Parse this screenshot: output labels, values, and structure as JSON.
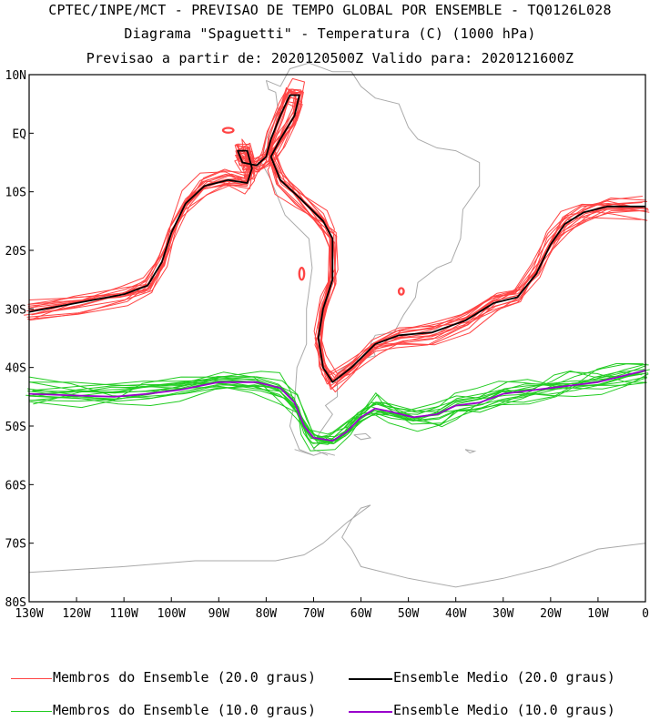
{
  "titles": {
    "line1": "CPTEC/INPE/MCT - PREVISAO DE TEMPO GLOBAL POR ENSEMBLE - TQ0126L028",
    "line2": "Diagrama \"Spaguetti\" - Temperatura (C) (1000 hPa)",
    "line3": "Previsao a partir de: 2020120500Z  Valido para: 2020121600Z"
  },
  "colors": {
    "member20": "#ff4444",
    "mean20": "#000000",
    "member10": "#22cc22",
    "mean10": "#9900cc",
    "coast": "#aaaaaa"
  },
  "legend": [
    {
      "label": "Membros do Ensemble (20.0 graus)",
      "color": "#ff4444",
      "key": "member20"
    },
    {
      "label": "Ensemble Medio (20.0 graus)",
      "color": "#000000",
      "key": "mean20"
    },
    {
      "label": "Membros do Ensemble (10.0 graus)",
      "color": "#22cc22",
      "key": "member10"
    },
    {
      "label": "Ensemble Medio (10.0 graus)",
      "color": "#9900cc",
      "key": "mean10"
    }
  ],
  "chart_data": {
    "type": "line",
    "xlim": [
      -130,
      0
    ],
    "ylim": [
      -80,
      10
    ],
    "x_ticks": [
      -130,
      -120,
      -110,
      -100,
      -90,
      -80,
      -70,
      -60,
      -50,
      -40,
      -30,
      -20,
      -10,
      0
    ],
    "x_tick_labels": [
      "130W",
      "120W",
      "110W",
      "100W",
      "90W",
      "80W",
      "70W",
      "60W",
      "50W",
      "40W",
      "30W",
      "20W",
      "10W",
      "0"
    ],
    "y_ticks": [
      10,
      0,
      -10,
      -20,
      -30,
      -40,
      -50,
      -60,
      -70,
      -80
    ],
    "y_tick_labels": [
      "10N",
      "EQ",
      "10S",
      "20S",
      "30S",
      "40S",
      "50S",
      "60S",
      "70S",
      "80S"
    ],
    "series": [
      {
        "name": "Ensemble Medio (20.0 graus)",
        "color": "#000000",
        "points": [
          [
            -130,
            -30.5
          ],
          [
            -120,
            -29
          ],
          [
            -110,
            -27.5
          ],
          [
            -105,
            -26
          ],
          [
            -102,
            -22
          ],
          [
            -100,
            -17
          ],
          [
            -97,
            -12
          ],
          [
            -93,
            -9
          ],
          [
            -88,
            -8
          ],
          [
            -84,
            -8.5
          ],
          [
            -83,
            -6
          ],
          [
            -84,
            -3
          ],
          [
            -86,
            -3
          ],
          [
            -85,
            -5
          ],
          [
            -82,
            -5.5
          ],
          [
            -80,
            -4
          ],
          [
            -79,
            -1
          ],
          [
            -77,
            3
          ],
          [
            -75,
            6.5
          ],
          [
            -73,
            6.5
          ],
          [
            -74,
            3
          ],
          [
            -77,
            -1
          ],
          [
            -79,
            -4
          ],
          [
            -77,
            -8
          ],
          [
            -73,
            -11
          ],
          [
            -68,
            -15
          ],
          [
            -66,
            -18
          ],
          [
            -66,
            -25
          ],
          [
            -68,
            -30
          ],
          [
            -69,
            -35
          ],
          [
            -68,
            -40
          ],
          [
            -66,
            -42.5
          ],
          [
            -62,
            -40
          ],
          [
            -57,
            -36
          ],
          [
            -52,
            -34.5
          ],
          [
            -45,
            -34
          ],
          [
            -38,
            -32
          ],
          [
            -32,
            -29
          ],
          [
            -27,
            -28
          ],
          [
            -23,
            -24
          ],
          [
            -20,
            -19
          ],
          [
            -17,
            -15.5
          ],
          [
            -13,
            -13.5
          ],
          [
            -8,
            -12.5
          ],
          [
            0,
            -12.5
          ]
        ]
      },
      {
        "name": "Ensemble Medio (10.0 graus)",
        "color": "#9900cc",
        "points": [
          [
            -130,
            -44.5
          ],
          [
            -120,
            -44.8
          ],
          [
            -112,
            -45
          ],
          [
            -105,
            -44.5
          ],
          [
            -98,
            -43.8
          ],
          [
            -90,
            -42.5
          ],
          [
            -82,
            -42.5
          ],
          [
            -77,
            -43.5
          ],
          [
            -74,
            -46
          ],
          [
            -72,
            -50
          ],
          [
            -70,
            -52
          ],
          [
            -66,
            -52.5
          ],
          [
            -63,
            -51
          ],
          [
            -60,
            -48.5
          ],
          [
            -57,
            -47
          ],
          [
            -54,
            -47.5
          ],
          [
            -49,
            -48.5
          ],
          [
            -44,
            -48
          ],
          [
            -40,
            -46.5
          ],
          [
            -35,
            -46
          ],
          [
            -30,
            -44.5
          ],
          [
            -25,
            -44
          ],
          [
            -20,
            -43.5
          ],
          [
            -15,
            -43
          ],
          [
            -10,
            -42.5
          ],
          [
            -5,
            -41.5
          ],
          [
            0,
            -40.5
          ]
        ]
      }
    ],
    "member_series": [
      {
        "name": "Membros do Ensemble (20.0 graus)",
        "color": "#ff4444",
        "base": "Ensemble Medio (20.0 graus)",
        "count": 16
      },
      {
        "name": "Membros do Ensemble (10.0 graus)",
        "color": "#22cc22",
        "base": "Ensemble Medio (10.0 graus)",
        "count": 16
      }
    ]
  }
}
